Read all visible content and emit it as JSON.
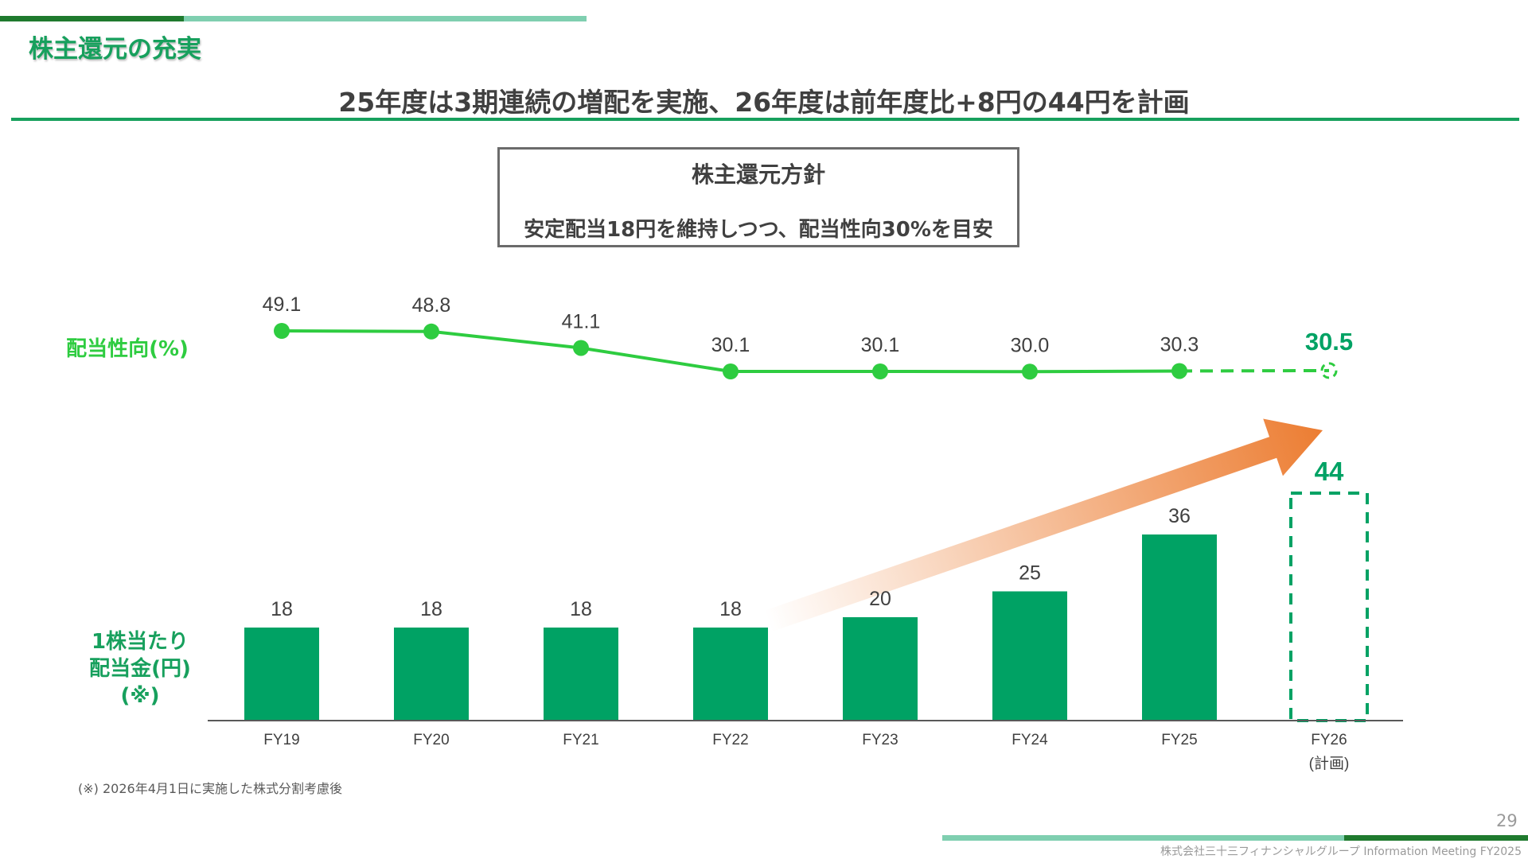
{
  "header": {
    "title": "株主還元の充実",
    "headline": "25年度は3期連続の増配を実施、26年度は前年度比+8円の44円を計画"
  },
  "policy": {
    "title": "株主還元方針",
    "text": "安定配当18円を維持しつつ、配当性向30%を目安"
  },
  "labels": {
    "payout_ratio": "配当性向(%)",
    "dps_line1": "1株当たり",
    "dps_line2": "配当金(円)",
    "dps_line3": "(※)"
  },
  "footnote": "(※) 2026年4月1日に実施した株式分割考慮後",
  "footer": {
    "page_number": "29",
    "company": "株式会社三十三フィナンシャルグループ Information Meeting FY2025"
  },
  "colors": {
    "bar_green": "#00a264",
    "line_green": "#2ecc40",
    "title_green": "#17a05d",
    "arrow_orange": "#ec7d32"
  },
  "chart_data": {
    "type": "bar+line",
    "categories": [
      "FY19",
      "FY20",
      "FY21",
      "FY22",
      "FY23",
      "FY24",
      "FY25",
      "FY26"
    ],
    "category_notes": [
      "",
      "",
      "",
      "",
      "",
      "",
      "",
      "(計画)"
    ],
    "dividend_per_share": {
      "values": [
        18,
        18,
        18,
        18,
        20,
        25,
        36,
        44
      ],
      "labels": [
        "18",
        "18",
        "18",
        "18",
        "20",
        "25",
        "36",
        "44"
      ],
      "planned_index": 7
    },
    "payout_ratio": {
      "values": [
        49.1,
        48.8,
        41.1,
        30.1,
        30.1,
        30.0,
        30.3,
        30.5
      ],
      "labels": [
        "49.1",
        "48.8",
        "41.1",
        "30.1",
        "30.1",
        "30.0",
        "30.3",
        "30.5"
      ],
      "planned_index": 7
    },
    "trend_arrow": {
      "from": "FY22",
      "to": "FY26"
    }
  }
}
